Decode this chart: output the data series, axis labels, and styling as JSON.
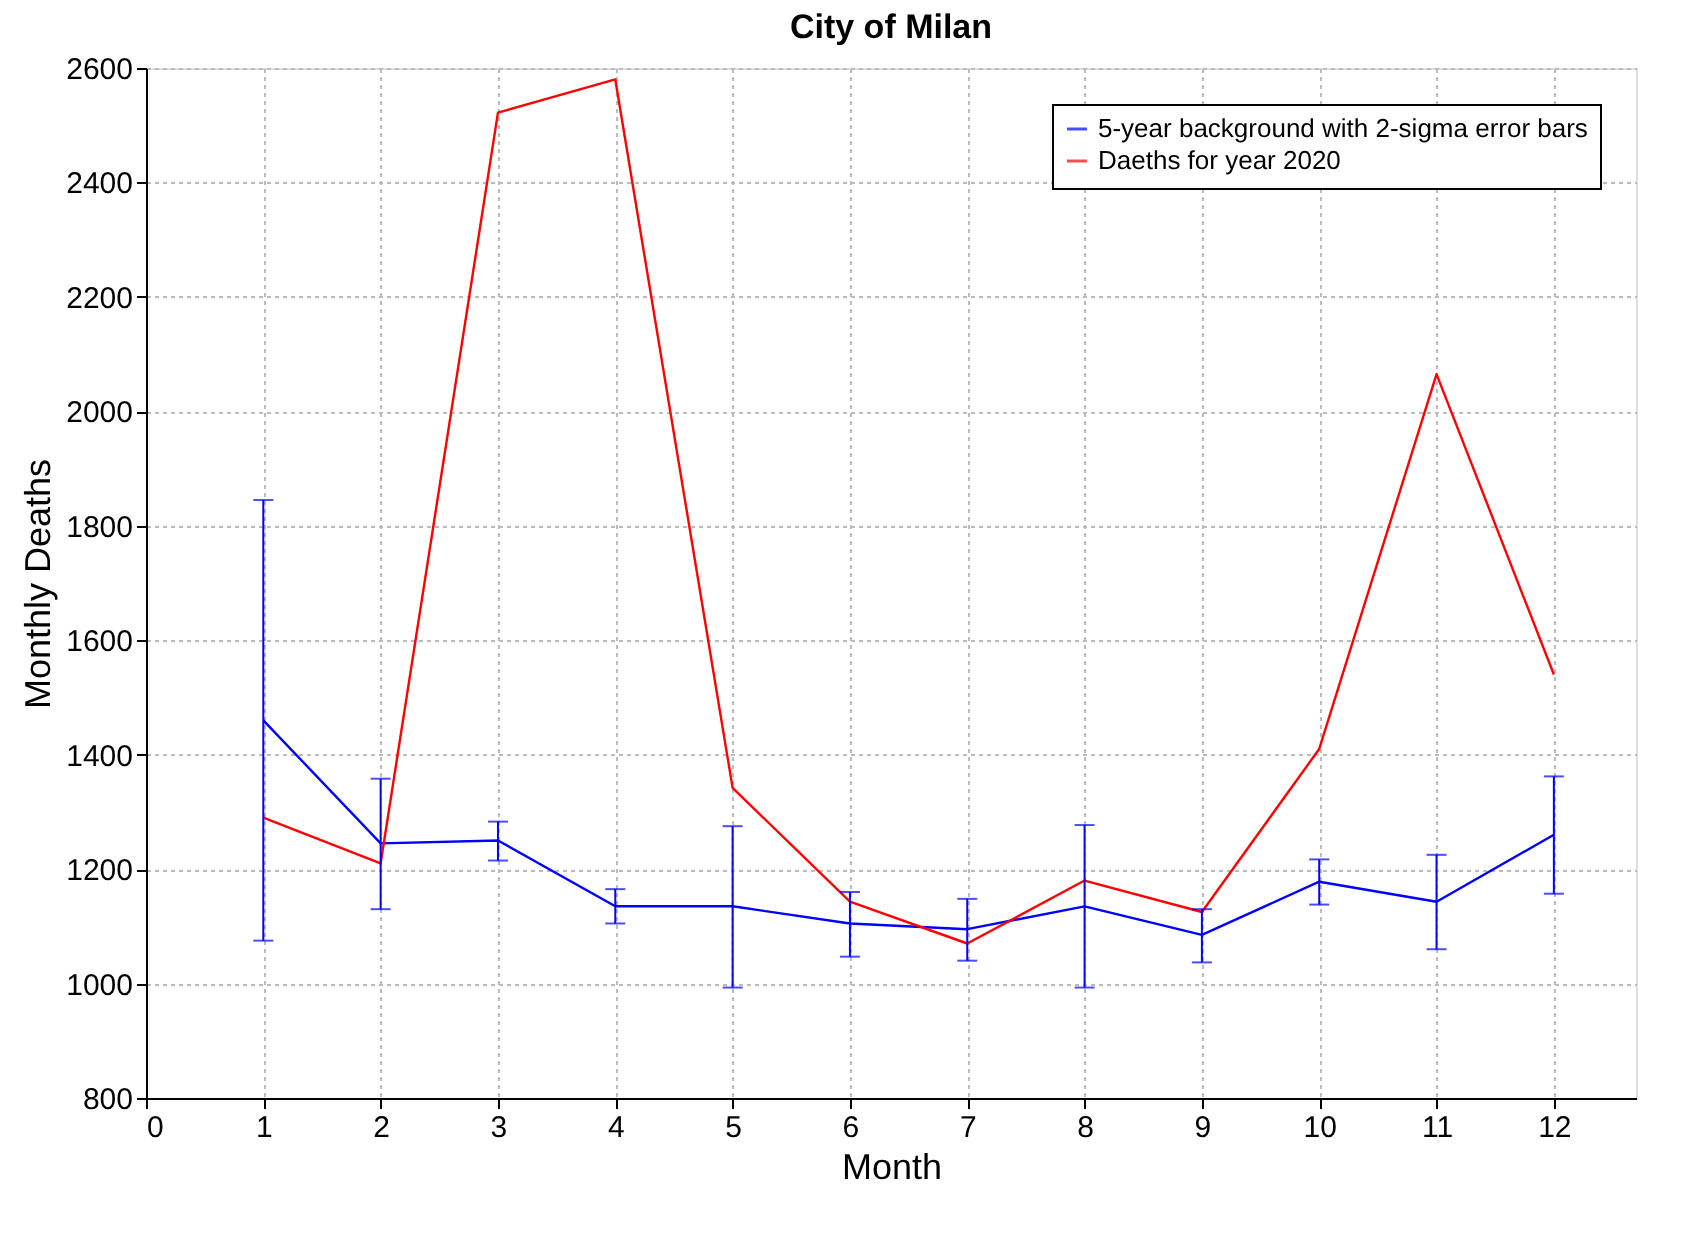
{
  "chart_data": {
    "type": "line",
    "title": "City of Milan",
    "xlabel": "Month",
    "ylabel": "Monthly Deaths",
    "x": [
      1,
      2,
      3,
      4,
      5,
      6,
      7,
      8,
      9,
      10,
      11,
      12
    ],
    "series": [
      {
        "name": "5-year background with 2-sigma error bars",
        "color": "#0000ff",
        "values": [
          1460,
          1245,
          1250,
          1135,
          1135,
          1105,
          1095,
          1135,
          1085,
          1178,
          1143,
          1260
        ],
        "errors": [
          [
            1075,
            1845
          ],
          [
            1130,
            1358
          ],
          [
            1215,
            1283
          ],
          [
            1105,
            1165
          ],
          [
            993,
            1275
          ],
          [
            1047,
            1160
          ],
          [
            1040,
            1148
          ],
          [
            993,
            1277
          ],
          [
            1037,
            1130
          ],
          [
            1138,
            1217
          ],
          [
            1060,
            1225
          ],
          [
            1157,
            1362
          ]
        ]
      },
      {
        "name": "Daeths for year 2020",
        "color": "#ff0000",
        "values": [
          1290,
          1210,
          2522,
          2580,
          1342,
          1143,
          1070,
          1180,
          1125,
          1410,
          2065,
          1540
        ]
      }
    ],
    "xlim": [
      0,
      12.7
    ],
    "xticks": [
      0,
      1,
      2,
      3,
      4,
      5,
      6,
      7,
      8,
      9,
      10,
      11,
      12
    ],
    "ylim": [
      800,
      2600
    ],
    "yticks": [
      800,
      1000,
      1200,
      1400,
      1600,
      1800,
      2000,
      2200,
      2400,
      2600
    ],
    "grid": true,
    "legend": "top right",
    "marker": "none",
    "line_style": "solid"
  }
}
